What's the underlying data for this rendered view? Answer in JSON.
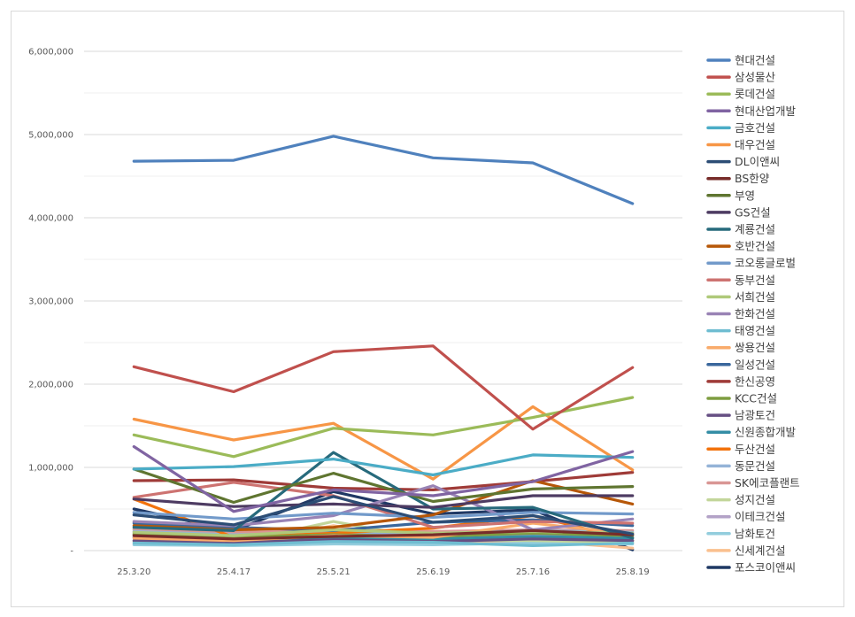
{
  "chart_data": {
    "type": "line",
    "title": "",
    "xlabel": "",
    "ylabel": "",
    "x": [
      "25.3.20",
      "25.4.17",
      "25.5.21",
      "25.6.19",
      "25.7.16",
      "25.8.19"
    ],
    "yticks": [
      "-",
      "1,000,000",
      "2,000,000",
      "3,000,000",
      "4,000,000",
      "5,000,000",
      "6,000,000"
    ],
    "ylim": [
      0,
      6000000
    ],
    "grid": "horizontal",
    "legend_position": "right",
    "series": [
      {
        "name": "현대건설",
        "color": "#4F81BD",
        "values": [
          4680000,
          4690000,
          4980000,
          4720000,
          4660000,
          4170000
        ]
      },
      {
        "name": "삼성물산",
        "color": "#C0504D",
        "values": [
          2210000,
          1910000,
          2390000,
          2460000,
          1460000,
          2200000
        ]
      },
      {
        "name": "롯데건설",
        "color": "#9BBB59",
        "values": [
          1390000,
          1130000,
          1470000,
          1390000,
          1600000,
          1840000
        ]
      },
      {
        "name": "현대산업개발",
        "color": "#8064A2",
        "values": [
          1250000,
          470000,
          730000,
          660000,
          830000,
          1190000
        ]
      },
      {
        "name": "금호건설",
        "color": "#4BACC6",
        "values": [
          980000,
          1010000,
          1100000,
          910000,
          1150000,
          1120000
        ]
      },
      {
        "name": "대우건설",
        "color": "#F79646",
        "values": [
          1580000,
          1330000,
          1530000,
          860000,
          1730000,
          970000
        ]
      },
      {
        "name": "DL이앤씨",
        "color": "#2C4D75",
        "values": [
          430000,
          310000,
          650000,
          340000,
          420000,
          200000
        ]
      },
      {
        "name": "BS한양",
        "color": "#772C2A",
        "values": [
          180000,
          140000,
          170000,
          190000,
          240000,
          190000
        ]
      },
      {
        "name": "부영",
        "color": "#5F7530",
        "values": [
          980000,
          580000,
          930000,
          590000,
          740000,
          770000
        ]
      },
      {
        "name": "GS건설",
        "color": "#4D3B62",
        "values": [
          620000,
          530000,
          560000,
          520000,
          660000,
          660000
        ]
      },
      {
        "name": "계룡건설",
        "color": "#276A7C",
        "values": [
          280000,
          240000,
          1180000,
          500000,
          520000,
          150000
        ]
      },
      {
        "name": "호반건설",
        "color": "#B65708",
        "values": [
          300000,
          250000,
          280000,
          430000,
          840000,
          560000
        ]
      },
      {
        "name": "코오롱글로벌",
        "color": "#729ACA",
        "values": [
          460000,
          380000,
          450000,
          400000,
          460000,
          440000
        ]
      },
      {
        "name": "동부건설",
        "color": "#CD7371",
        "values": [
          640000,
          820000,
          660000,
          280000,
          350000,
          330000
        ]
      },
      {
        "name": "서희건설",
        "color": "#AFC97A",
        "values": [
          220000,
          180000,
          250000,
          210000,
          230000,
          210000
        ]
      },
      {
        "name": "한화건설",
        "color": "#9983B5",
        "values": [
          350000,
          300000,
          420000,
          780000,
          250000,
          380000
        ]
      },
      {
        "name": "태영건설",
        "color": "#6FBDD1",
        "values": [
          90000,
          70000,
          110000,
          100000,
          60000,
          90000
        ]
      },
      {
        "name": "쌍용건설",
        "color": "#F9AB6B",
        "values": [
          150000,
          120000,
          180000,
          160000,
          330000,
          200000
        ]
      },
      {
        "name": "일성건설",
        "color": "#3A679C",
        "values": [
          330000,
          280000,
          240000,
          340000,
          370000,
          300000
        ]
      },
      {
        "name": "한신공영",
        "color": "#9F3B38",
        "values": [
          840000,
          850000,
          750000,
          730000,
          830000,
          940000
        ]
      },
      {
        "name": "KCC건설",
        "color": "#7E9D40",
        "values": [
          200000,
          160000,
          190000,
          170000,
          210000,
          180000
        ]
      },
      {
        "name": "남광토건",
        "color": "#664F83",
        "values": [
          120000,
          100000,
          130000,
          110000,
          140000,
          120000
        ]
      },
      {
        "name": "신원종합개발",
        "color": "#348DA5",
        "values": [
          160000,
          130000,
          150000,
          140000,
          170000,
          150000
        ]
      },
      {
        "name": "두산건설",
        "color": "#F2720C",
        "values": [
          620000,
          160000,
          210000,
          270000,
          420000,
          120000
        ]
      },
      {
        "name": "동문건설",
        "color": "#95B3D7",
        "values": [
          230000,
          190000,
          210000,
          200000,
          240000,
          220000
        ]
      },
      {
        "name": "SK에코플랜트",
        "color": "#D99694",
        "values": [
          260000,
          220000,
          240000,
          230000,
          250000,
          240000
        ]
      },
      {
        "name": "성지건설",
        "color": "#C3D69B",
        "values": [
          110000,
          90000,
          350000,
          130000,
          120000,
          100000
        ]
      },
      {
        "name": "이테크건설",
        "color": "#B3A2C7",
        "values": [
          190000,
          150000,
          170000,
          160000,
          180000,
          170000
        ]
      },
      {
        "name": "남화토건",
        "color": "#93CDDD",
        "values": [
          70000,
          60000,
          80000,
          70000,
          90000,
          80000
        ]
      },
      {
        "name": "신세계건설",
        "color": "#FAC08F",
        "values": [
          250000,
          60000,
          300000,
          100000,
          120000,
          30000
        ]
      },
      {
        "name": "포스코이앤씨",
        "color": "#1F3864",
        "values": [
          500000,
          240000,
          710000,
          440000,
          490000,
          10000
        ]
      }
    ]
  }
}
